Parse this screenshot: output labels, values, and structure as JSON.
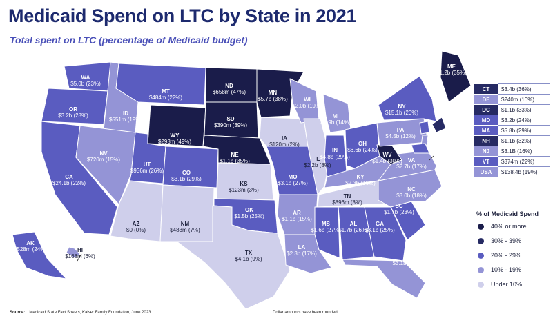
{
  "title": "Medicaid Spend on LTC by State in 2021",
  "subtitle": "Total spent on LTC (percentage of Medicaid budget)",
  "colors": {
    "c40": "#1a1c4a",
    "c30": "#262a63",
    "c20": "#5a5cc0",
    "c10": "#9494d6",
    "c0": "#cfcfeb",
    "border": "#ffffff"
  },
  "states": {
    "WA": {
      "abbr": "WA",
      "value": "$5.0b (23%)"
    },
    "OR": {
      "abbr": "OR",
      "value": "$3.2b (28%)"
    },
    "CA": {
      "abbr": "CA",
      "value": "$24.1b (22%)"
    },
    "ID": {
      "abbr": "ID",
      "value": "$551m (19%)"
    },
    "NV": {
      "abbr": "NV",
      "value": "$720m (15%)"
    },
    "MT": {
      "abbr": "MT",
      "value": "$484m (22%)"
    },
    "WY": {
      "abbr": "WY",
      "value": "$293m (49%)"
    },
    "UT": {
      "abbr": "UT",
      "value": "$936m (26%)"
    },
    "CO": {
      "abbr": "CO",
      "value": "$3.1b (29%)"
    },
    "AZ": {
      "abbr": "AZ",
      "value": "$0 (0%)"
    },
    "NM": {
      "abbr": "NM",
      "value": "$483m (7%)"
    },
    "ND": {
      "abbr": "ND",
      "value": "$658m (47%)"
    },
    "SD": {
      "abbr": "SD",
      "value": "$390m (39%)"
    },
    "NE": {
      "abbr": "NE",
      "value": "$1.1b (35%)"
    },
    "KS": {
      "abbr": "KS",
      "value": "$123m (3%)"
    },
    "OK": {
      "abbr": "OK",
      "value": "$1.5b (25%)"
    },
    "TX": {
      "abbr": "TX",
      "value": "$4.1b (9%)"
    },
    "MN": {
      "abbr": "MN",
      "value": "$5.7b (38%)"
    },
    "IA": {
      "abbr": "IA",
      "value": "$120m (2%)"
    },
    "MO": {
      "abbr": "MO",
      "value": "$3.1b (27%)"
    },
    "AR": {
      "abbr": "AR",
      "value": "$1.1b (15%)"
    },
    "LA": {
      "abbr": "LA",
      "value": "$2.3b (17%)"
    },
    "WI": {
      "abbr": "WI",
      "value": "$2.0b (19%)"
    },
    "IL": {
      "abbr": "IL",
      "value": "$2.2b (8%)"
    },
    "MI": {
      "abbr": "MI",
      "value": "$2.9b (14%)"
    },
    "IN": {
      "abbr": "IN",
      "value": "$4.8b (29%)"
    },
    "OH": {
      "abbr": "OH",
      "value": "$6.6b (24%)"
    },
    "KY": {
      "abbr": "KY",
      "value": "$2.3b (16%)"
    },
    "TN": {
      "abbr": "TN",
      "value": "$896m (8%)"
    },
    "MS": {
      "abbr": "MS",
      "value": "$1.6b (27%)"
    },
    "AL": {
      "abbr": "AL",
      "value": "$1.7b (26%)"
    },
    "GA": {
      "abbr": "GA",
      "value": "$3.1b (25%)"
    },
    "FL": {
      "abbr": "FL",
      "value": "$3.1b (11%)"
    },
    "SC": {
      "abbr": "SC",
      "value": "$1.7b (23%)"
    },
    "NC": {
      "abbr": "NC",
      "value": "$3.0b (18%)"
    },
    "VA": {
      "abbr": "VA",
      "value": "$2.7b (17%)"
    },
    "WV": {
      "abbr": "WV",
      "value": "$1.4b (30%)"
    },
    "PA": {
      "abbr": "PA",
      "value": "$4.5b (12%)"
    },
    "NY": {
      "abbr": "NY",
      "value": "$15.1b (20%)"
    },
    "ME": {
      "abbr": "ME",
      "value": "$1.2b (35%)"
    },
    "AK": {
      "abbr": "AK",
      "value": "$528m (24%)"
    },
    "HI": {
      "abbr": "HI",
      "value": "$168m (6%)"
    }
  },
  "northeast_table": [
    {
      "abbr": "CT",
      "value": "$3.4b (36%)"
    },
    {
      "abbr": "DE",
      "value": "$240m (10%)"
    },
    {
      "abbr": "DC",
      "value": "$1.1b (33%)"
    },
    {
      "abbr": "MD",
      "value": "$3.2b (24%)"
    },
    {
      "abbr": "MA",
      "value": "$5.8b (29%)"
    },
    {
      "abbr": "NH",
      "value": "$1.1b (32%)"
    },
    {
      "abbr": "NJ",
      "value": "$3.1B (16%)"
    },
    {
      "abbr": "VT",
      "value": "$374m (22%)"
    },
    {
      "abbr": "USA",
      "value": "$138.4b (19%)"
    }
  ],
  "legend": {
    "title": "% of Medicaid Spend",
    "items": [
      {
        "label": "40% or more"
      },
      {
        "label": "30% - 39%"
      },
      {
        "label": "20% - 29%"
      },
      {
        "label": "10% - 19%"
      },
      {
        "label": "Under 10%"
      }
    ]
  },
  "source_label": "Source:",
  "source_text": "Medicaid State Fact Sheets, Kaiser Family Foundation, June 2023",
  "note": "Dollar amounts have been rounded"
}
